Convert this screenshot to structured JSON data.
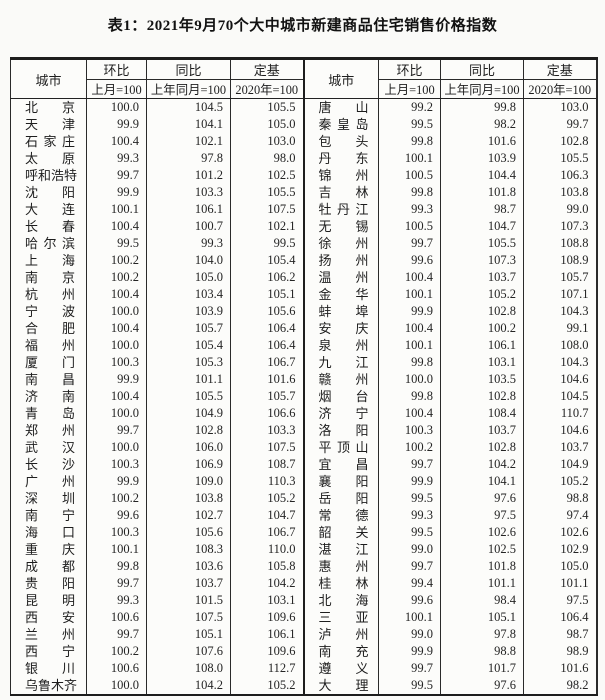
{
  "title": "表1：2021年9月70个大中城市新建商品住宅销售价格指数",
  "colors": {
    "background": "#fafaf8",
    "border": "#2a2a2a",
    "text": "#222222"
  },
  "table": {
    "header": {
      "city": "城市",
      "mom": "环比",
      "yoy": "同比",
      "fixed_base": "定基",
      "mom_sub": "上月=100",
      "yoy_sub": "上年同月=100",
      "fixed_base_sub": "2020年=100"
    },
    "left_rows": [
      [
        "北京",
        "100.0",
        "104.5",
        "105.5"
      ],
      [
        "天津",
        "99.9",
        "104.1",
        "105.0"
      ],
      [
        "石家庄",
        "100.4",
        "102.1",
        "103.0"
      ],
      [
        "太原",
        "99.3",
        "97.8",
        "98.0"
      ],
      [
        "呼和浩特",
        "99.7",
        "101.2",
        "102.5"
      ],
      [
        "沈阳",
        "99.9",
        "103.3",
        "105.5"
      ],
      [
        "大连",
        "100.1",
        "106.1",
        "107.5"
      ],
      [
        "长春",
        "100.4",
        "100.7",
        "102.1"
      ],
      [
        "哈尔滨",
        "99.5",
        "99.3",
        "99.5"
      ],
      [
        "上海",
        "100.2",
        "104.0",
        "105.4"
      ],
      [
        "南京",
        "100.2",
        "105.0",
        "106.2"
      ],
      [
        "杭州",
        "100.4",
        "103.4",
        "105.1"
      ],
      [
        "宁波",
        "100.0",
        "103.9",
        "105.6"
      ],
      [
        "合肥",
        "100.4",
        "105.7",
        "106.4"
      ],
      [
        "福州",
        "100.0",
        "105.4",
        "106.4"
      ],
      [
        "厦门",
        "100.3",
        "105.3",
        "106.7"
      ],
      [
        "南昌",
        "99.9",
        "101.1",
        "101.6"
      ],
      [
        "济南",
        "100.4",
        "105.5",
        "105.7"
      ],
      [
        "青岛",
        "100.0",
        "104.9",
        "106.6"
      ],
      [
        "郑州",
        "99.7",
        "102.8",
        "103.3"
      ],
      [
        "武汉",
        "100.0",
        "106.0",
        "107.5"
      ],
      [
        "长沙",
        "100.3",
        "106.9",
        "108.7"
      ],
      [
        "广州",
        "99.9",
        "109.0",
        "110.3"
      ],
      [
        "深圳",
        "100.2",
        "103.8",
        "105.2"
      ],
      [
        "南宁",
        "99.6",
        "102.7",
        "104.7"
      ],
      [
        "海口",
        "100.3",
        "105.6",
        "106.7"
      ],
      [
        "重庆",
        "100.1",
        "108.3",
        "110.0"
      ],
      [
        "成都",
        "99.8",
        "103.6",
        "105.8"
      ],
      [
        "贵阳",
        "99.7",
        "103.7",
        "104.2"
      ],
      [
        "昆明",
        "99.3",
        "101.5",
        "103.1"
      ],
      [
        "西安",
        "100.6",
        "107.5",
        "109.6"
      ],
      [
        "兰州",
        "99.7",
        "105.1",
        "106.1"
      ],
      [
        "西宁",
        "100.2",
        "107.6",
        "109.6"
      ],
      [
        "银川",
        "100.6",
        "108.0",
        "112.7"
      ],
      [
        "乌鲁木齐",
        "100.0",
        "104.2",
        "105.2"
      ]
    ],
    "right_rows": [
      [
        "唐山",
        "99.2",
        "99.8",
        "103.0"
      ],
      [
        "秦皇岛",
        "99.5",
        "98.2",
        "99.7"
      ],
      [
        "包头",
        "99.8",
        "101.6",
        "102.8"
      ],
      [
        "丹东",
        "100.1",
        "103.9",
        "105.5"
      ],
      [
        "锦州",
        "100.5",
        "104.4",
        "106.3"
      ],
      [
        "吉林",
        "99.8",
        "101.8",
        "103.8"
      ],
      [
        "牡丹江",
        "99.3",
        "98.7",
        "99.0"
      ],
      [
        "无锡",
        "100.5",
        "104.7",
        "107.3"
      ],
      [
        "徐州",
        "99.7",
        "105.5",
        "108.8"
      ],
      [
        "扬州",
        "99.6",
        "107.3",
        "108.9"
      ],
      [
        "温州",
        "100.4",
        "103.7",
        "105.7"
      ],
      [
        "金华",
        "100.1",
        "105.2",
        "107.1"
      ],
      [
        "蚌埠",
        "99.9",
        "102.8",
        "104.3"
      ],
      [
        "安庆",
        "100.4",
        "100.2",
        "99.1"
      ],
      [
        "泉州",
        "100.1",
        "106.1",
        "108.0"
      ],
      [
        "九江",
        "99.8",
        "103.1",
        "104.3"
      ],
      [
        "赣州",
        "100.0",
        "103.5",
        "104.6"
      ],
      [
        "烟台",
        "99.8",
        "102.8",
        "104.5"
      ],
      [
        "济宁",
        "100.4",
        "108.4",
        "110.7"
      ],
      [
        "洛阳",
        "100.3",
        "103.7",
        "104.6"
      ],
      [
        "平顶山",
        "100.2",
        "102.8",
        "103.7"
      ],
      [
        "宜昌",
        "99.7",
        "104.2",
        "104.9"
      ],
      [
        "襄阳",
        "99.9",
        "104.1",
        "105.2"
      ],
      [
        "岳阳",
        "99.5",
        "97.6",
        "98.8"
      ],
      [
        "常德",
        "99.3",
        "97.5",
        "97.4"
      ],
      [
        "韶关",
        "99.5",
        "102.6",
        "102.6"
      ],
      [
        "湛江",
        "99.0",
        "102.5",
        "102.9"
      ],
      [
        "惠州",
        "99.7",
        "101.8",
        "105.0"
      ],
      [
        "桂林",
        "99.4",
        "101.1",
        "101.1"
      ],
      [
        "北海",
        "99.6",
        "98.4",
        "97.5"
      ],
      [
        "三亚",
        "100.1",
        "105.1",
        "106.4"
      ],
      [
        "泸州",
        "99.0",
        "97.8",
        "98.7"
      ],
      [
        "南充",
        "99.9",
        "98.8",
        "98.9"
      ],
      [
        "遵义",
        "99.7",
        "101.7",
        "101.6"
      ],
      [
        "大理",
        "99.5",
        "97.6",
        "98.2"
      ]
    ]
  }
}
